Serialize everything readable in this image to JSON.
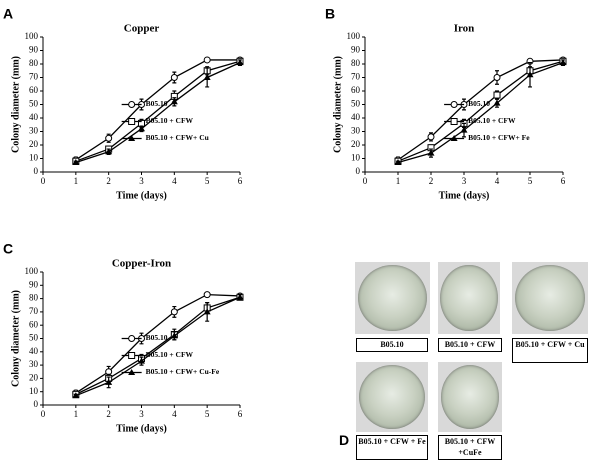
{
  "chart_data": [
    {
      "type": "line",
      "panel_label": "A",
      "title": "Copper",
      "xlabel": "Time (days)",
      "ylabel": "Colony diameter (mm)",
      "x": [
        1,
        2,
        3,
        4,
        5,
        6
      ],
      "xlim": [
        0,
        6
      ],
      "xticks": [
        0,
        1,
        2,
        3,
        4,
        5,
        6
      ],
      "ylim": [
        0,
        100
      ],
      "yticks": [
        0,
        10,
        20,
        30,
        40,
        50,
        60,
        70,
        80,
        90,
        100
      ],
      "grid": false,
      "series": [
        {
          "name": "B05.10",
          "color": "#000000",
          "marker": "circle-open",
          "values": [
            9,
            25,
            50,
            70,
            83,
            83
          ],
          "errors": [
            2,
            3,
            4,
            4,
            1,
            1
          ]
        },
        {
          "name": "B05.10 + CFW",
          "color": "#000000",
          "marker": "square-open",
          "values": [
            8,
            17,
            36,
            56,
            75,
            82
          ],
          "errors": [
            1,
            2,
            3,
            4,
            3,
            1
          ]
        },
        {
          "name": "B05.10 + CFW+ Cu",
          "color": "#000000",
          "marker": "triangle-filled",
          "values": [
            7,
            15,
            32,
            52,
            70,
            81
          ],
          "errors": [
            1,
            2,
            2,
            3,
            7,
            2
          ]
        }
      ]
    },
    {
      "type": "line",
      "panel_label": "B",
      "title": "Iron",
      "xlabel": "Time (days)",
      "ylabel": "Colony diameter (mm)",
      "x": [
        1,
        2,
        3,
        4,
        5,
        6
      ],
      "xlim": [
        0,
        6
      ],
      "xticks": [
        0,
        1,
        2,
        3,
        4,
        5,
        6
      ],
      "ylim": [
        0,
        100
      ],
      "yticks": [
        0,
        10,
        20,
        30,
        40,
        50,
        60,
        70,
        80,
        90,
        100
      ],
      "grid": false,
      "series": [
        {
          "name": "B05.10",
          "color": "#000000",
          "marker": "circle-open",
          "values": [
            9,
            26,
            50,
            70,
            82,
            83
          ],
          "errors": [
            2,
            3,
            4,
            5,
            1,
            1
          ]
        },
        {
          "name": "B05.10 + CFW",
          "color": "#000000",
          "marker": "square-open",
          "values": [
            8,
            18,
            36,
            57,
            75,
            82
          ],
          "errors": [
            1,
            2,
            3,
            3,
            3,
            1
          ]
        },
        {
          "name": "B05.10 + CFW+ Fe",
          "color": "#000000",
          "marker": "triangle-filled",
          "values": [
            7,
            14,
            31,
            51,
            72,
            81
          ],
          "errors": [
            1,
            3,
            5,
            3,
            9,
            2
          ]
        }
      ]
    },
    {
      "type": "line",
      "panel_label": "C",
      "title": "Copper-Iron",
      "xlabel": "Time (days)",
      "ylabel": "Colony diameter (mm)",
      "x": [
        1,
        2,
        3,
        4,
        5,
        6
      ],
      "xlim": [
        0,
        6
      ],
      "xticks": [
        0,
        1,
        2,
        3,
        4,
        5,
        6
      ],
      "ylim": [
        0,
        100
      ],
      "yticks": [
        0,
        10,
        20,
        30,
        40,
        50,
        60,
        70,
        80,
        90,
        100
      ],
      "grid": false,
      "series": [
        {
          "name": "B05.10",
          "color": "#000000",
          "marker": "circle-open",
          "values": [
            9,
            25,
            50,
            70,
            83,
            82
          ],
          "errors": [
            2,
            4,
            4,
            4,
            1,
            1
          ]
        },
        {
          "name": "B05.10 + CFW",
          "color": "#000000",
          "marker": "square-open",
          "values": [
            8,
            20,
            35,
            53,
            73,
            81
          ],
          "errors": [
            1,
            3,
            3,
            4,
            4,
            1
          ]
        },
        {
          "name": "B05.10 + CFW+ Cu-Fe",
          "color": "#000000",
          "marker": "triangle-filled",
          "values": [
            7,
            17,
            33,
            52,
            70,
            81
          ],
          "errors": [
            1,
            4,
            3,
            3,
            7,
            2
          ]
        }
      ]
    }
  ],
  "photo_panel": {
    "label": "D",
    "captions": [
      "B05.10",
      "B05.10 + CFW",
      "B05.10 + CFW + Cu",
      "B05.10 + CFW + Fe",
      "B05.10 + CFW +CuFe"
    ]
  }
}
